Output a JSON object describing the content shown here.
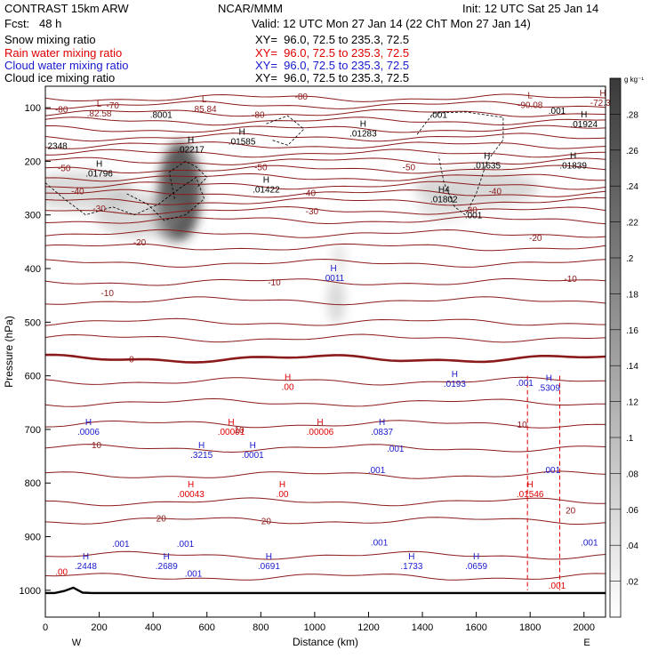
{
  "header": {
    "model": "CONTRAST 15km ARW",
    "org": "NCAR/MMM",
    "init": "Init: 12 UTC Sat 25 Jan 14",
    "fcst": "Fcst:   48 h",
    "valid": "Valid: 12 UTC Mon 27 Jan 14 (22 ChT Mon 27 Jan 14)",
    "fields": [
      {
        "name": "Snow mixing ratio",
        "xy": "XY=  96.0, 72.5 to 235.3, 72.5",
        "color": "#000000"
      },
      {
        "name": "Rain water mixing ratio",
        "xy": "XY=  96.0, 72.5 to 235.3, 72.5",
        "color": "#e00000"
      },
      {
        "name": "Cloud water mixing ratio",
        "xy": "XY=  96.0, 72.5 to 235.3, 72.5",
        "color": "#1a1ad0"
      },
      {
        "name": "Cloud ice mixing ratio",
        "xy": "XY=  96.0, 72.5 to 235.3, 72.5",
        "color": "#000000"
      }
    ]
  },
  "chart_data": {
    "type": "contour",
    "xlabel": "Distance (km)",
    "ylabel": "Pressure (hPa)",
    "xlim": [
      0,
      2080
    ],
    "ylim": [
      1050,
      60
    ],
    "x_ticks": [
      0,
      200,
      400,
      600,
      800,
      1000,
      1200,
      1400,
      1600,
      1800,
      2000
    ],
    "y_ticks": [
      100,
      200,
      300,
      400,
      500,
      600,
      700,
      800,
      900,
      1000
    ],
    "x_ends": {
      "left": "W",
      "right": "E"
    },
    "colorbar": {
      "unit": "g kg⁻¹",
      "ticks": [
        ".02",
        ".04",
        ".06",
        ".08",
        ".1",
        ".12",
        ".14",
        ".16",
        ".18",
        ".2",
        ".22",
        ".24",
        ".26",
        ".28"
      ]
    },
    "temperature_labels": [
      {
        "t": "-80",
        "x": 60,
        "p": 102
      },
      {
        "t": "-80",
        "x": 950,
        "p": 78
      },
      {
        "t": "-80",
        "x": 790,
        "p": 112
      },
      {
        "t": "-70",
        "x": 250,
        "p": 95
      },
      {
        "t": "-50",
        "x": 70,
        "p": 212
      },
      {
        "t": "-50",
        "x": 800,
        "p": 210
      },
      {
        "t": "-50",
        "x": 1350,
        "p": 210
      },
      {
        "t": "-40",
        "x": 120,
        "p": 255
      },
      {
        "t": "-40",
        "x": 980,
        "p": 258
      },
      {
        "t": "-40",
        "x": 1670,
        "p": 255
      },
      {
        "t": "-30",
        "x": 200,
        "p": 287
      },
      {
        "t": "-30",
        "x": 990,
        "p": 292
      },
      {
        "t": "-30",
        "x": 1580,
        "p": 290
      },
      {
        "t": "-20",
        "x": 350,
        "p": 350
      },
      {
        "t": "-20",
        "x": 1820,
        "p": 342
      },
      {
        "t": "-10",
        "x": 230,
        "p": 445
      },
      {
        "t": "-10",
        "x": 850,
        "p": 425
      },
      {
        "t": "-10",
        "x": 1950,
        "p": 418
      },
      {
        "t": "0",
        "x": 320,
        "p": 568
      },
      {
        "t": "10",
        "x": 190,
        "p": 728
      },
      {
        "t": "10",
        "x": 720,
        "p": 700
      },
      {
        "t": "10",
        "x": 1770,
        "p": 690
      },
      {
        "t": "20",
        "x": 430,
        "p": 865
      },
      {
        "t": "20",
        "x": 820,
        "p": 870
      },
      {
        "t": "20",
        "x": 1950,
        "p": 850
      }
    ],
    "max_labels": [
      {
        "k": "L",
        "v": ".82.58",
        "x": 200,
        "p": 108,
        "c": "#8b1a1a"
      },
      {
        "k": "L",
        "v": ".85.84",
        "x": 590,
        "p": 100,
        "c": "#8b1a1a"
      },
      {
        "k": "L",
        "v": "-90.08",
        "x": 1800,
        "p": 92,
        "c": "#8b1a1a"
      },
      {
        "k": "H",
        "v": "-72.36",
        "x": 2070,
        "p": 88,
        "c": "#8b1a1a"
      },
      {
        "k": "H",
        "v": ".02217",
        "x": 540,
        "p": 175,
        "c": "#000"
      },
      {
        "k": "H",
        "v": ".01585",
        "x": 730,
        "p": 160,
        "c": "#000"
      },
      {
        "k": "H",
        "v": ".01283",
        "x": 1180,
        "p": 145,
        "c": "#000"
      },
      {
        "k": "H",
        "v": ".01796",
        "x": 200,
        "p": 220,
        "c": "#000"
      },
      {
        "k": "H",
        "v": ".01422",
        "x": 820,
        "p": 250,
        "c": "#000"
      },
      {
        "k": "H",
        "v": ".01635",
        "x": 1640,
        "p": 205,
        "c": "#000"
      },
      {
        "k": "H",
        "v": ".01839",
        "x": 1960,
        "p": 205,
        "c": "#000"
      },
      {
        "k": "H",
        "v": ".01924",
        "x": 2000,
        "p": 128,
        "c": "#000"
      },
      {
        "k": "H4",
        "v": ".01802",
        "x": 1480,
        "p": 268,
        "c": "#000"
      },
      {
        "k": "H",
        "v": ".0011",
        "x": 1070,
        "p": 415,
        "c": "#1a1ad0"
      },
      {
        "k": "H",
        "v": ".00",
        "x": 900,
        "p": 618,
        "c": "#e00000"
      },
      {
        "k": "H",
        "v": ".0193",
        "x": 1520,
        "p": 612,
        "c": "#1a1ad0"
      },
      {
        "k": "H",
        "v": ".5309",
        "x": 1870,
        "p": 620,
        "c": "#1a1ad0"
      },
      {
        "k": "H",
        "v": ".0006",
        "x": 160,
        "p": 702,
        "c": "#1a1ad0"
      },
      {
        "k": "H",
        "v": ".00001",
        "x": 690,
        "p": 702,
        "c": "#e00000"
      },
      {
        "k": "H",
        "v": ".00006",
        "x": 1020,
        "p": 702,
        "c": "#e00000"
      },
      {
        "k": "H",
        "v": ".0837",
        "x": 1250,
        "p": 702,
        "c": "#1a1ad0"
      },
      {
        "k": "H",
        "v": ".3215",
        "x": 580,
        "p": 745,
        "c": "#1a1ad0"
      },
      {
        "k": "H",
        "v": ".0001",
        "x": 770,
        "p": 745,
        "c": "#1a1ad0"
      },
      {
        "k": "H",
        "v": ".00043",
        "x": 540,
        "p": 818,
        "c": "#e00000"
      },
      {
        "k": "H",
        "v": ".00",
        "x": 880,
        "p": 818,
        "c": "#e00000"
      },
      {
        "k": "H",
        "v": ".01546",
        "x": 1800,
        "p": 818,
        "c": "#e00000"
      },
      {
        "k": "H",
        "v": ".2448",
        "x": 150,
        "p": 952,
        "c": "#1a1ad0"
      },
      {
        "k": "H",
        "v": ".2689",
        "x": 450,
        "p": 952,
        "c": "#1a1ad0"
      },
      {
        "k": "H",
        "v": ".0691",
        "x": 830,
        "p": 952,
        "c": "#1a1ad0"
      },
      {
        "k": "H",
        "v": ".1733",
        "x": 1360,
        "p": 952,
        "c": "#1a1ad0"
      },
      {
        "k": "H",
        "v": ".0659",
        "x": 1600,
        "p": 952,
        "c": "#1a1ad0"
      }
    ],
    "small_labels": [
      {
        "t": "2348",
        "x": 45,
        "p": 170,
        "c": "#000"
      },
      {
        "t": ".8001",
        "x": 430,
        "p": 112,
        "c": "#000"
      },
      {
        "t": ".001",
        "x": 1460,
        "p": 112,
        "c": "#000"
      },
      {
        "t": ".001",
        "x": 1900,
        "p": 105,
        "c": "#000"
      },
      {
        "t": ".001",
        "x": 1590,
        "p": 300,
        "c": "#000"
      },
      {
        "t": ".001",
        "x": 1780,
        "p": 612,
        "c": "#1a1ad0"
      },
      {
        "t": ".001",
        "x": 1300,
        "p": 735,
        "c": "#1a1ad0"
      },
      {
        "t": ".001",
        "x": 1230,
        "p": 775,
        "c": "#1a1ad0"
      },
      {
        "t": ".001",
        "x": 1880,
        "p": 775,
        "c": "#1a1ad0"
      },
      {
        "t": ".001",
        "x": 280,
        "p": 912,
        "c": "#1a1ad0"
      },
      {
        "t": ".001",
        "x": 520,
        "p": 912,
        "c": "#1a1ad0"
      },
      {
        "t": ".001",
        "x": 550,
        "p": 968,
        "c": "#1a1ad0"
      },
      {
        "t": ".001",
        "x": 1240,
        "p": 910,
        "c": "#1a1ad0"
      },
      {
        "t": ".001",
        "x": 2020,
        "p": 910,
        "c": "#1a1ad0"
      },
      {
        "t": ".001",
        "x": 1900,
        "p": 990,
        "c": "#e00000"
      },
      {
        "t": ".00",
        "x": 60,
        "p": 965,
        "c": "#e00000"
      }
    ]
  }
}
